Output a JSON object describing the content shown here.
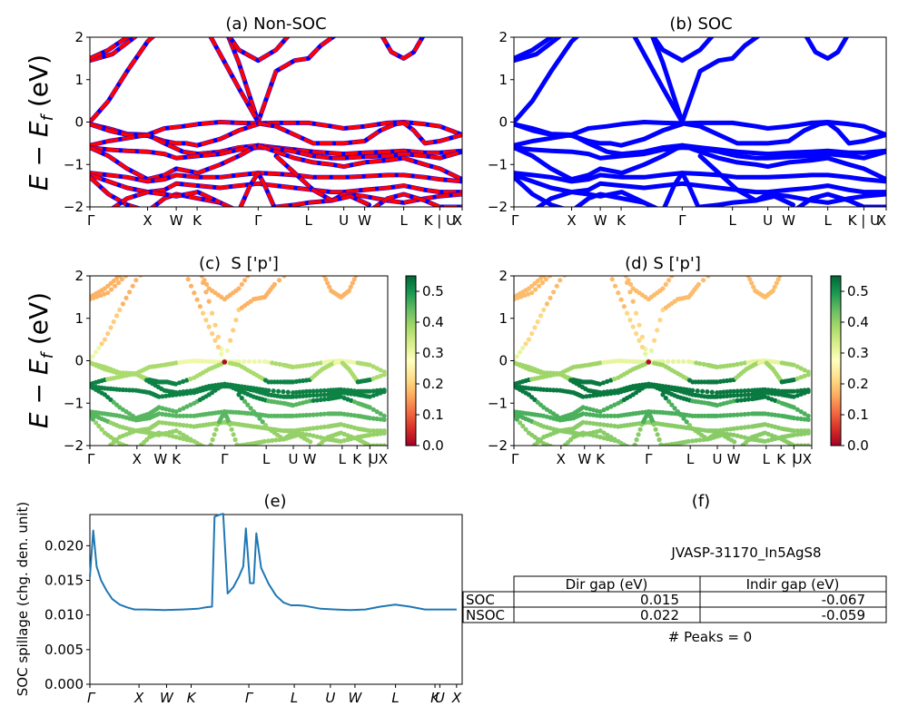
{
  "chart_data": [
    {
      "id": "a",
      "type": "line",
      "title": "(a) Non-SOC",
      "ylabel": "E − E_f (eV)",
      "ylim": [
        -2,
        2
      ],
      "yticks": [
        -2,
        -1,
        0,
        1,
        2
      ],
      "kpath": [
        {
          "label": "Γ",
          "x": 0.0
        },
        {
          "label": "X",
          "x": 0.155
        },
        {
          "label": "W",
          "x": 0.232
        },
        {
          "label": "K",
          "x": 0.288
        },
        {
          "label": "Γ",
          "x": 0.452
        },
        {
          "label": "L",
          "x": 0.587
        },
        {
          "label": "U",
          "x": 0.682
        },
        {
          "label": "W",
          "x": 0.738
        },
        {
          "label": "L",
          "x": 0.843
        },
        {
          "label": "K|U",
          "x": 0.94
        },
        {
          "label": "X",
          "x": 1.0
        }
      ],
      "series_styles": [
        {
          "name": "SOC",
          "color": "#0000ff"
        },
        {
          "name": "Non-SOC",
          "color": "#ff0000",
          "dashed": true
        }
      ],
      "bands": [
        {
          "x": [
            0,
            0.06,
            0.12,
            0.2
          ],
          "y": [
            1.45,
            1.6,
            2.0,
            2.6
          ]
        },
        {
          "x": [
            0,
            0.05,
            0.1,
            0.15
          ],
          "y": [
            1.5,
            1.7,
            2.0,
            2.4
          ]
        },
        {
          "x": [
            0,
            0.05,
            0.1,
            0.155,
            0.23,
            0.29,
            0.35,
            0.4,
            0.452,
            0.5,
            0.55,
            0.587,
            0.62,
            0.7,
            0.75
          ],
          "y": [
            0,
            0.5,
            1.2,
            1.9,
            2.5,
            2.8,
            2.5,
            1.4,
            0.0,
            1.2,
            1.45,
            1.5,
            1.8,
            2.3,
            2.6
          ]
        },
        {
          "x": [
            0.3,
            0.35,
            0.4,
            0.452
          ],
          "y": [
            2.4,
            1.6,
            0.8,
            0.0
          ]
        },
        {
          "x": [
            0.36,
            0.4,
            0.452,
            0.5,
            0.55
          ],
          "y": [
            2.2,
            1.7,
            1.45,
            1.7,
            2.2
          ]
        },
        {
          "x": [
            0.78,
            0.81,
            0.843,
            0.87,
            0.9
          ],
          "y": [
            2.1,
            1.65,
            1.5,
            1.65,
            2.1
          ]
        },
        {
          "x": [
            0,
            0.05,
            0.1,
            0.155,
            0.2,
            0.25,
            0.29,
            0.35,
            0.4,
            0.452,
            0.5,
            0.587,
            0.65,
            0.682,
            0.738,
            0.8,
            0.843,
            0.9,
            0.94,
            1.0
          ],
          "y": [
            -0.05,
            -0.15,
            -0.28,
            -0.3,
            -0.15,
            -0.1,
            -0.05,
            0.0,
            -0.02,
            -0.03,
            -0.02,
            -0.02,
            -0.1,
            -0.15,
            -0.1,
            -0.02,
            0.0,
            -0.05,
            -0.1,
            -0.3
          ]
        },
        {
          "x": [
            0,
            0.05,
            0.1,
            0.155,
            0.2,
            0.232,
            0.26,
            0.288,
            0.35,
            0.4,
            0.452
          ],
          "y": [
            -0.05,
            -0.2,
            -0.3,
            -0.32,
            -0.45,
            -0.5,
            -0.5,
            -0.55,
            -0.4,
            -0.2,
            -0.05
          ]
        },
        {
          "x": [
            0.452,
            0.5,
            0.55,
            0.6,
            0.65,
            0.682,
            0.738,
            0.78,
            0.82,
            0.843,
            0.87,
            0.9,
            0.94,
            1.0
          ],
          "y": [
            -0.03,
            -0.1,
            -0.3,
            -0.5,
            -0.5,
            -0.5,
            -0.45,
            -0.2,
            -0.05,
            -0.02,
            -0.2,
            -0.5,
            -0.45,
            -0.3
          ]
        },
        {
          "x": [
            0,
            0.05,
            0.1,
            0.155,
            0.2,
            0.25,
            0.29,
            0.35,
            0.4,
            0.452,
            0.5,
            0.55,
            0.6,
            0.682,
            0.738,
            0.8,
            0.843,
            0.9,
            0.94,
            1.0
          ],
          "y": [
            -0.55,
            -0.45,
            -0.38,
            -0.3,
            -0.5,
            -0.7,
            -0.75,
            -0.7,
            -0.6,
            -0.55,
            -0.6,
            -0.65,
            -0.7,
            -0.75,
            -0.72,
            -0.7,
            -0.68,
            -0.72,
            -0.72,
            -0.68
          ]
        },
        {
          "x": [
            0,
            0.05,
            0.1,
            0.155,
            0.2,
            0.232,
            0.29,
            0.35,
            0.4,
            0.452,
            0.5,
            0.55,
            0.6,
            0.65,
            0.682,
            0.738,
            0.8,
            0.843,
            0.9,
            0.94,
            1.0
          ],
          "y": [
            -0.6,
            -0.65,
            -0.68,
            -0.7,
            -0.75,
            -0.85,
            -0.8,
            -0.75,
            -0.65,
            -0.6,
            -0.62,
            -0.7,
            -0.8,
            -0.85,
            -0.85,
            -0.82,
            -0.8,
            -0.75,
            -0.8,
            -0.85,
            -0.7
          ]
        },
        {
          "x": [
            0,
            0.05,
            0.1,
            0.155,
            0.2,
            0.232,
            0.29,
            0.35,
            0.4,
            0.452
          ],
          "y": [
            -0.6,
            -0.8,
            -1.1,
            -1.35,
            -1.25,
            -1.1,
            -1.2,
            -1.0,
            -0.8,
            -0.55
          ]
        },
        {
          "x": [
            0.452,
            0.5,
            0.55,
            0.6,
            0.65,
            0.682,
            0.738,
            0.8,
            0.843,
            0.9,
            0.94,
            1.0
          ],
          "y": [
            -0.55,
            -0.7,
            -0.85,
            -0.95,
            -1.0,
            -1.05,
            -0.95,
            -0.9,
            -0.85,
            -1.0,
            -1.1,
            -1.35
          ]
        },
        {
          "x": [
            0,
            0.05,
            0.1,
            0.155,
            0.2,
            0.232,
            0.29,
            0.35,
            0.4,
            0.452,
            0.5,
            0.55,
            0.6,
            0.65,
            0.682,
            0.738,
            0.8,
            0.843,
            0.9,
            0.94,
            1.0
          ],
          "y": [
            -1.2,
            -1.25,
            -1.3,
            -1.4,
            -1.35,
            -1.25,
            -1.3,
            -1.3,
            -1.25,
            -1.2,
            -1.22,
            -1.25,
            -1.3,
            -1.3,
            -1.3,
            -1.28,
            -1.25,
            -1.25,
            -1.3,
            -1.35,
            -1.4
          ]
        },
        {
          "x": [
            0,
            0.05,
            0.1,
            0.155,
            0.2,
            0.232,
            0.29,
            0.35,
            0.4,
            0.452,
            0.5,
            0.55,
            0.6,
            0.65,
            0.682,
            0.738,
            0.8,
            0.843,
            0.9,
            0.94,
            1.0
          ],
          "y": [
            -1.25,
            -1.4,
            -1.55,
            -1.65,
            -1.6,
            -1.45,
            -1.5,
            -1.55,
            -1.5,
            -1.45,
            -1.5,
            -1.55,
            -1.6,
            -1.65,
            -1.65,
            -1.6,
            -1.55,
            -1.5,
            -1.6,
            -1.65,
            -1.65
          ]
        },
        {
          "x": [
            0,
            0.05,
            0.1,
            0.155,
            0.2,
            0.232,
            0.29,
            0.35,
            0.4
          ],
          "y": [
            -1.3,
            -1.7,
            -1.95,
            -2.1,
            -1.8,
            -1.7,
            -1.8,
            -1.9,
            -2.1
          ]
        },
        {
          "x": [
            0.05,
            0.1,
            0.155,
            0.2,
            0.232,
            0.29,
            0.35
          ],
          "y": [
            -2.1,
            -1.8,
            -1.65,
            -1.7,
            -1.75,
            -1.65,
            -1.9
          ]
        },
        {
          "x": [
            0.4,
            0.43,
            0.452,
            0.47,
            0.5
          ],
          "y": [
            -2.1,
            -1.5,
            -1.2,
            -1.5,
            -2.1
          ]
        },
        {
          "x": [
            0.5,
            0.55,
            0.587,
            0.65,
            0.682,
            0.738,
            0.8,
            0.843,
            0.9,
            0.94,
            1.0
          ],
          "y": [
            -2.0,
            -1.95,
            -1.9,
            -1.85,
            -1.7,
            -1.75,
            -1.85,
            -1.9,
            -1.8,
            -1.75,
            -1.7
          ]
        },
        {
          "x": [
            0.5,
            0.55,
            0.6,
            0.65,
            0.7,
            0.75
          ],
          "y": [
            -0.8,
            -1.2,
            -1.6,
            -1.85,
            -1.75,
            -1.95
          ]
        },
        {
          "x": [
            0.75,
            0.8,
            0.843,
            0.9,
            0.94,
            1.0
          ],
          "y": [
            -2.1,
            -1.8,
            -1.7,
            -1.85,
            -2.0,
            -2.0
          ]
        }
      ]
    },
    {
      "id": "b",
      "type": "line",
      "title": "(b) SOC",
      "ylim": [
        -2,
        2
      ],
      "yticks": [
        -2,
        -1,
        0,
        1,
        2
      ],
      "series_styles": [
        {
          "name": "SOC",
          "color": "#0000ff"
        }
      ],
      "bands_ref": "same band set as (a), drawn in blue"
    },
    {
      "id": "c",
      "type": "scatter",
      "title": "(c)  S ['p']",
      "ylabel": "E − E_f (eV)",
      "ylim": [
        -2,
        2
      ],
      "colorbar": {
        "cmap": "RdYlGn",
        "ticks": [
          0.0,
          0.1,
          0.2,
          0.3,
          0.4,
          0.5
        ],
        "range": [
          0.0,
          0.55
        ]
      },
      "projection_rule": "conduction bands ~0.15-0.25, valence top ~0.35-0.45, deeper valence ~0.5"
    },
    {
      "id": "d",
      "type": "scatter",
      "title": "(d) S ['p']",
      "ylim": [
        -2,
        2
      ],
      "colorbar": {
        "cmap": "RdYlGn",
        "ticks": [
          0.0,
          0.1,
          0.2,
          0.3,
          0.4,
          0.5
        ],
        "range": [
          0.0,
          0.55
        ]
      }
    },
    {
      "id": "e",
      "type": "line",
      "title": "(e)",
      "ylabel": "SOC spillage (chg. den. unit)",
      "ylim": [
        0,
        0.0245
      ],
      "yticks": [
        "0.000",
        "0.005",
        "0.010",
        "0.015",
        "0.020"
      ],
      "kpath": [
        {
          "label": "Γ",
          "x": 0.0
        },
        {
          "label": "X",
          "x": 0.132
        },
        {
          "label": "W",
          "x": 0.206
        },
        {
          "label": "K",
          "x": 0.272
        },
        {
          "label": "Γ",
          "x": 0.427
        },
        {
          "label": "L",
          "x": 0.549
        },
        {
          "label": "U",
          "x": 0.646
        },
        {
          "label": "W",
          "x": 0.712
        },
        {
          "label": "L",
          "x": 0.821
        },
        {
          "label": "K",
          "x": 0.927
        },
        {
          "label": "U",
          "x": 0.94
        },
        {
          "label": "X",
          "x": 0.985
        }
      ],
      "color": "#1f77b4",
      "x": [
        0,
        0.009,
        0.018,
        0.03,
        0.045,
        0.06,
        0.08,
        0.1,
        0.12,
        0.15,
        0.2,
        0.25,
        0.29,
        0.31,
        0.328,
        0.335,
        0.35,
        0.358,
        0.37,
        0.385,
        0.4,
        0.412,
        0.419,
        0.43,
        0.44,
        0.447,
        0.46,
        0.48,
        0.5,
        0.52,
        0.54,
        0.56,
        0.58,
        0.62,
        0.66,
        0.7,
        0.74,
        0.78,
        0.82,
        0.86,
        0.9,
        0.94,
        0.985
      ],
      "y": [
        0.0155,
        0.0222,
        0.017,
        0.015,
        0.0135,
        0.0123,
        0.0115,
        0.0111,
        0.0108,
        0.0108,
        0.0107,
        0.0108,
        0.0109,
        0.0111,
        0.0112,
        0.0242,
        0.0245,
        0.0246,
        0.0131,
        0.014,
        0.0155,
        0.017,
        0.0225,
        0.0146,
        0.0146,
        0.0218,
        0.0168,
        0.0145,
        0.0128,
        0.0118,
        0.0114,
        0.0114,
        0.0113,
        0.0109,
        0.0108,
        0.0107,
        0.0108,
        0.0112,
        0.0115,
        0.0112,
        0.0108,
        0.0108,
        0.0108
      ]
    }
  ],
  "table_panel": {
    "title": "(f)",
    "material": "JVASP-31170_In5AgS8",
    "columns": [
      "Dir gap (eV)",
      "Indir gap (eV)"
    ],
    "rows": [
      {
        "label": "SOC",
        "dir": "0.015",
        "indir": "-0.067"
      },
      {
        "label": "NSOC",
        "dir": "0.022",
        "indir": "-0.059"
      }
    ],
    "peaks": "# Peaks = 0"
  }
}
